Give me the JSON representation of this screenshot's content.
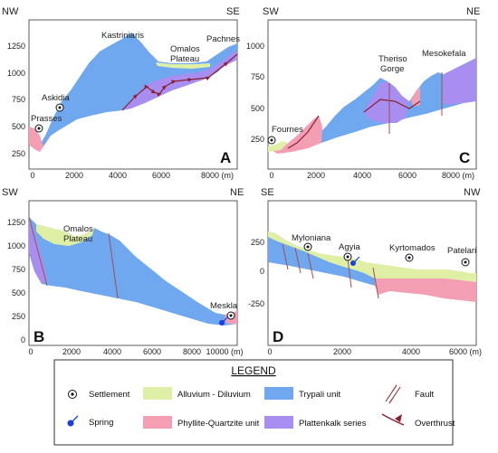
{
  "colors": {
    "alluvium": "#dff0a6",
    "phyllite": "#f49eb4",
    "trypali": "#6fa8ef",
    "plattenkalk": "#a78ef0",
    "fault": "#a05050",
    "overthrust": "#8a2030",
    "spring": "#1a3fe0"
  },
  "panels": {
    "A": {
      "letter": "A",
      "left_dir": "NW",
      "right_dir": "SE",
      "y_ticks": [
        "1250",
        "1000",
        "750",
        "500",
        "250"
      ],
      "x_ticks": [
        "0",
        "2000",
        "4000",
        "6000",
        "8000 (m)"
      ],
      "places": {
        "p1": "Kastriniaris",
        "p2": "Omalos",
        "p3": "Plateau",
        "p4": "Pachnes",
        "p5": "Askidia",
        "p6": "Prasses"
      }
    },
    "B": {
      "letter": "B",
      "left_dir": "SW",
      "right_dir": "NE",
      "y_ticks": [
        "1250",
        "1000",
        "750",
        "500",
        "250",
        "0"
      ],
      "x_ticks": [
        "0",
        "2000",
        "4000",
        "6000",
        "8000",
        "10000 (m)"
      ],
      "places": {
        "p1": "Omalos",
        "p2": "Plateau",
        "p3": "Meskla"
      }
    },
    "C": {
      "letter": "C",
      "left_dir": "SW",
      "right_dir": "NE",
      "y_ticks": [
        "1000",
        "750",
        "500",
        "250"
      ],
      "x_ticks": [
        "0",
        "2000",
        "4000",
        "6000",
        "8000 (m)"
      ],
      "places": {
        "p1": "Theriso",
        "p2": "Gorge",
        "p3": "Mesokefala",
        "p4": "Fournes"
      }
    },
    "D": {
      "letter": "D",
      "left_dir": "SE",
      "right_dir": "NW",
      "y_ticks": [
        "250",
        "0",
        "-250"
      ],
      "x_ticks": [
        "0",
        "2000",
        "4000",
        "6000 (m)"
      ],
      "places": {
        "p1": "Myloniana",
        "p2": "Agyia",
        "p3": "Kyrtomados",
        "p4": "Patelari"
      }
    }
  },
  "legend": {
    "title": "LEGEND",
    "settlement": "Settlement",
    "spring": "Spring",
    "alluvium": "Alluvium - Diluvium",
    "phyllite": "Phyllite-Quartzite unit",
    "trypali": "Trypali unit",
    "plattenkalk": "Plattenkalk series",
    "fault": "Fault",
    "overthrust": "Overthrust"
  }
}
